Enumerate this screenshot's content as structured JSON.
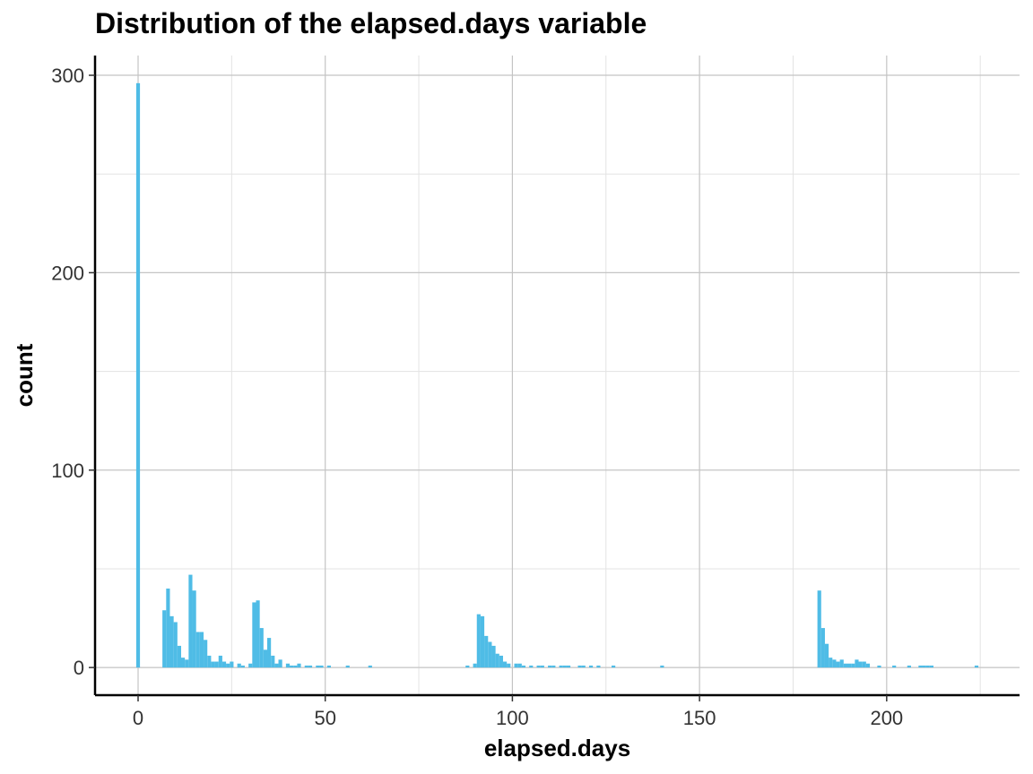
{
  "chart_data": {
    "type": "bar",
    "title": "Distribution of the elapsed.days variable",
    "xlabel": "elapsed.days",
    "ylabel": "count",
    "xlim": [
      -11.5,
      235.5
    ],
    "ylim": [
      -14,
      310
    ],
    "x_ticks": [
      0,
      50,
      100,
      150,
      200
    ],
    "y_ticks": [
      0,
      100,
      200,
      300
    ],
    "grid": true,
    "bar_color": "#4FBCE6",
    "bin_width": 1,
    "bins": [
      {
        "x": 0,
        "count": 296
      },
      {
        "x": 7,
        "count": 29
      },
      {
        "x": 8,
        "count": 40
      },
      {
        "x": 9,
        "count": 26
      },
      {
        "x": 10,
        "count": 23
      },
      {
        "x": 11,
        "count": 11
      },
      {
        "x": 12,
        "count": 5
      },
      {
        "x": 13,
        "count": 4
      },
      {
        "x": 14,
        "count": 47
      },
      {
        "x": 15,
        "count": 39
      },
      {
        "x": 16,
        "count": 18
      },
      {
        "x": 17,
        "count": 18
      },
      {
        "x": 18,
        "count": 14
      },
      {
        "x": 19,
        "count": 6
      },
      {
        "x": 20,
        "count": 3
      },
      {
        "x": 21,
        "count": 3
      },
      {
        "x": 22,
        "count": 6
      },
      {
        "x": 23,
        "count": 3
      },
      {
        "x": 24,
        "count": 2
      },
      {
        "x": 25,
        "count": 3
      },
      {
        "x": 27,
        "count": 2
      },
      {
        "x": 28,
        "count": 1
      },
      {
        "x": 30,
        "count": 2
      },
      {
        "x": 31,
        "count": 33
      },
      {
        "x": 32,
        "count": 34
      },
      {
        "x": 33,
        "count": 20
      },
      {
        "x": 34,
        "count": 9
      },
      {
        "x": 35,
        "count": 15
      },
      {
        "x": 36,
        "count": 6
      },
      {
        "x": 37,
        "count": 2
      },
      {
        "x": 38,
        "count": 4
      },
      {
        "x": 40,
        "count": 2
      },
      {
        "x": 41,
        "count": 1
      },
      {
        "x": 42,
        "count": 1
      },
      {
        "x": 43,
        "count": 2
      },
      {
        "x": 45,
        "count": 1
      },
      {
        "x": 46,
        "count": 1
      },
      {
        "x": 48,
        "count": 1
      },
      {
        "x": 49,
        "count": 1
      },
      {
        "x": 51,
        "count": 1
      },
      {
        "x": 56,
        "count": 1
      },
      {
        "x": 62,
        "count": 1
      },
      {
        "x": 88,
        "count": 1
      },
      {
        "x": 90,
        "count": 2
      },
      {
        "x": 91,
        "count": 27
      },
      {
        "x": 92,
        "count": 26
      },
      {
        "x": 93,
        "count": 16
      },
      {
        "x": 94,
        "count": 13
      },
      {
        "x": 95,
        "count": 11
      },
      {
        "x": 96,
        "count": 7
      },
      {
        "x": 97,
        "count": 6
      },
      {
        "x": 98,
        "count": 3
      },
      {
        "x": 99,
        "count": 2
      },
      {
        "x": 101,
        "count": 2
      },
      {
        "x": 102,
        "count": 2
      },
      {
        "x": 103,
        "count": 1
      },
      {
        "x": 105,
        "count": 1
      },
      {
        "x": 107,
        "count": 1
      },
      {
        "x": 108,
        "count": 1
      },
      {
        "x": 110,
        "count": 1
      },
      {
        "x": 111,
        "count": 1
      },
      {
        "x": 113,
        "count": 1
      },
      {
        "x": 114,
        "count": 1
      },
      {
        "x": 115,
        "count": 1
      },
      {
        "x": 118,
        "count": 1
      },
      {
        "x": 119,
        "count": 1
      },
      {
        "x": 121,
        "count": 1
      },
      {
        "x": 123,
        "count": 1
      },
      {
        "x": 127,
        "count": 1
      },
      {
        "x": 140,
        "count": 1
      },
      {
        "x": 182,
        "count": 39
      },
      {
        "x": 183,
        "count": 20
      },
      {
        "x": 184,
        "count": 12
      },
      {
        "x": 185,
        "count": 5
      },
      {
        "x": 186,
        "count": 4
      },
      {
        "x": 187,
        "count": 3
      },
      {
        "x": 188,
        "count": 4
      },
      {
        "x": 189,
        "count": 2
      },
      {
        "x": 190,
        "count": 2
      },
      {
        "x": 191,
        "count": 2
      },
      {
        "x": 192,
        "count": 4
      },
      {
        "x": 193,
        "count": 3
      },
      {
        "x": 194,
        "count": 3
      },
      {
        "x": 195,
        "count": 2
      },
      {
        "x": 198,
        "count": 1
      },
      {
        "x": 202,
        "count": 1
      },
      {
        "x": 206,
        "count": 1
      },
      {
        "x": 209,
        "count": 1
      },
      {
        "x": 210,
        "count": 1
      },
      {
        "x": 211,
        "count": 1
      },
      {
        "x": 212,
        "count": 1
      },
      {
        "x": 224,
        "count": 1
      }
    ]
  }
}
